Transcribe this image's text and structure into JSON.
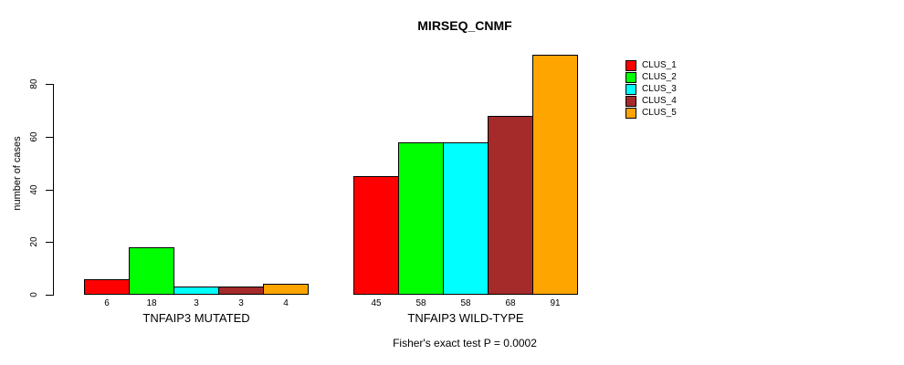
{
  "title": "MIRSEQ_CNMF",
  "caption": "Fisher's exact test P = 0.0002",
  "y_axis": {
    "label": "number of cases",
    "ticks": [
      0,
      20,
      40,
      60,
      80
    ]
  },
  "legend": [
    {
      "label": "CLUS_1",
      "color": "#FF0000"
    },
    {
      "label": "CLUS_2",
      "color": "#00FF00"
    },
    {
      "label": "CLUS_3",
      "color": "#00FFFF"
    },
    {
      "label": "CLUS_4",
      "color": "#A52A2A"
    },
    {
      "label": "CLUS_5",
      "color": "#FFA500"
    }
  ],
  "chart_data": {
    "type": "bar",
    "title": "MIRSEQ_CNMF",
    "xlabel": "",
    "ylabel": "number of cases",
    "ylim": [
      0,
      80
    ],
    "grid": false,
    "legend_position": "right",
    "series_names": [
      "CLUS_1",
      "CLUS_2",
      "CLUS_3",
      "CLUS_4",
      "CLUS_5"
    ],
    "series_colors": [
      "#FF0000",
      "#00FF00",
      "#00FFFF",
      "#A52A2A",
      "#FFA500"
    ],
    "groups": [
      {
        "label": "TNFAIP3 MUTATED",
        "values": [
          6,
          18,
          3,
          3,
          4
        ]
      },
      {
        "label": "TNFAIP3 WILD-TYPE",
        "values": [
          45,
          58,
          58,
          68,
          91
        ]
      }
    ],
    "bar_value_labels_shown": true,
    "annotation": "Fisher's exact test P = 0.0002"
  }
}
